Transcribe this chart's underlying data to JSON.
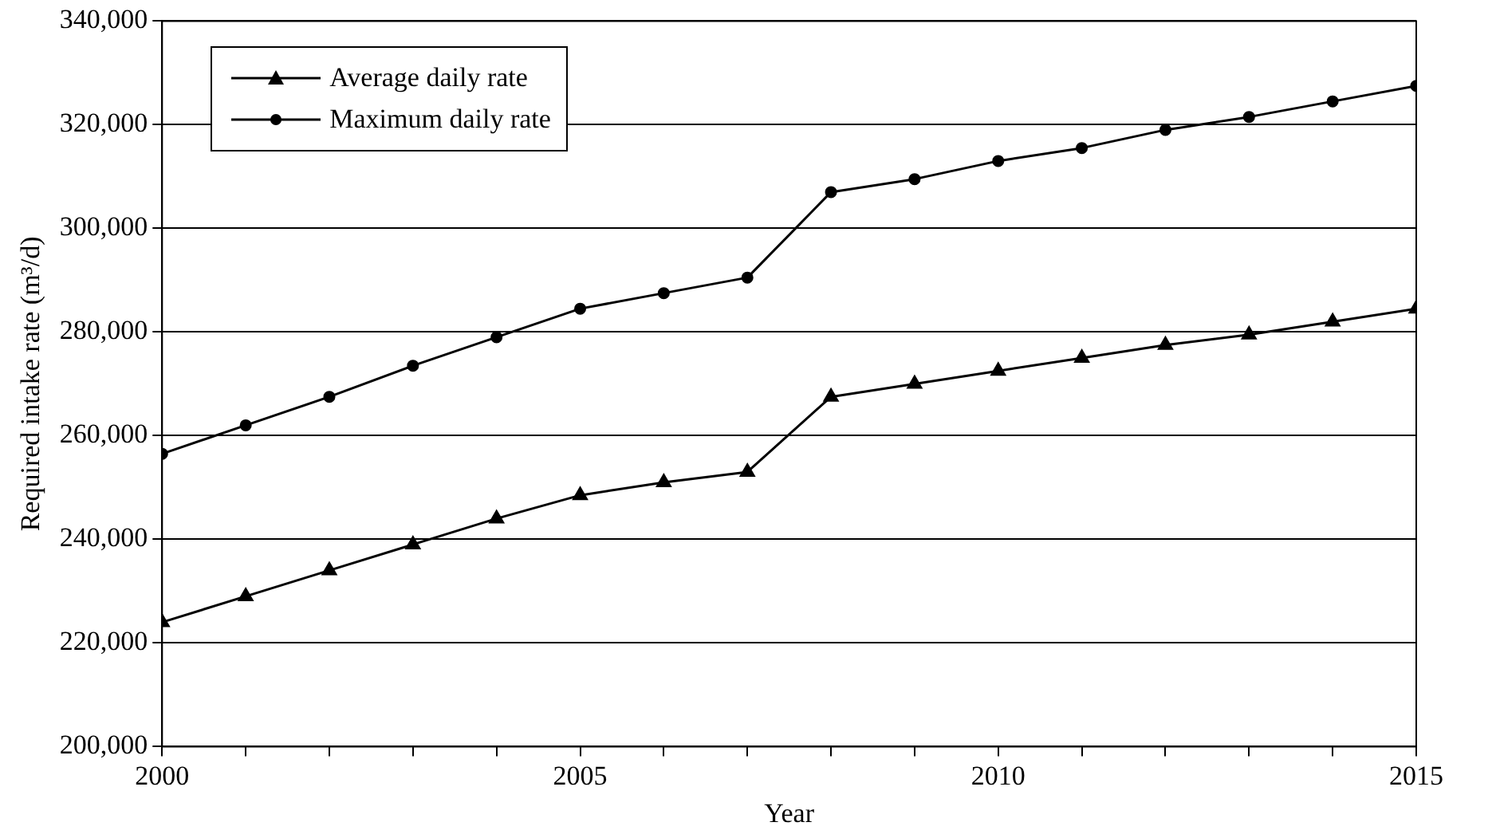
{
  "chart_data": {
    "type": "line",
    "xlabel": "Year",
    "ylabel": "Required intake rate (m³/d)",
    "x": [
      2000,
      2001,
      2002,
      2003,
      2004,
      2005,
      2006,
      2007,
      2008,
      2009,
      2010,
      2011,
      2012,
      2013,
      2014,
      2015
    ],
    "series": [
      {
        "name": "Average daily rate",
        "color": "#000000",
        "marker": "triangle",
        "values": [
          224000,
          229000,
          234000,
          239000,
          244000,
          248500,
          251000,
          253000,
          267500,
          270000,
          272500,
          275000,
          277500,
          279500,
          282000,
          284500
        ]
      },
      {
        "name": "Maximum daily rate",
        "color": "#000000",
        "marker": "circle",
        "values": [
          256500,
          262000,
          267500,
          273500,
          279000,
          284500,
          287500,
          290500,
          307000,
          309500,
          313000,
          315500,
          319000,
          321500,
          324500,
          327500
        ]
      }
    ],
    "xlim": [
      2000,
      2015
    ],
    "xticks": [
      2000,
      {
        "value": 2001,
        "label": null
      },
      {
        "value": 2002,
        "label": null
      },
      {
        "value": 2003,
        "label": null
      },
      {
        "value": 2004,
        "label": null
      },
      2005,
      {
        "value": 2006,
        "label": null
      },
      {
        "value": 2007,
        "label": null
      },
      {
        "value": 2008,
        "label": null
      },
      {
        "value": 2009,
        "label": null
      },
      2010,
      {
        "value": 2011,
        "label": null
      },
      {
        "value": 2012,
        "label": null
      },
      {
        "value": 2013,
        "label": null
      },
      {
        "value": 2014,
        "label": null
      },
      2015
    ],
    "ylim": [
      200000,
      340000
    ],
    "yticks": [
      {
        "value": 200000,
        "label": "200,000"
      },
      {
        "value": 220000,
        "label": "220,000"
      },
      {
        "value": 240000,
        "label": "240,000"
      },
      {
        "value": 260000,
        "label": "260,000"
      },
      {
        "value": 280000,
        "label": "280,000"
      },
      {
        "value": 300000,
        "label": "300,000"
      },
      {
        "value": 320000,
        "label": "320,000"
      },
      {
        "value": 340000,
        "label": "340,000"
      }
    ],
    "grid": "y",
    "legend": "top left",
    "line_style": "solid"
  }
}
